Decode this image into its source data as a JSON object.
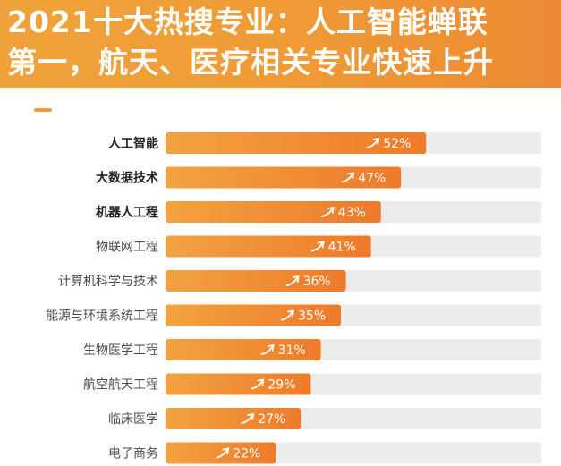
{
  "header": {
    "title_line1": "2021十大热搜专业：人工智能蝉联",
    "title_line2": "第一，航天、医疗相关专业快速上升",
    "bg_color": "#ef9a36"
  },
  "chart_data": {
    "type": "bar",
    "orientation": "horizontal",
    "categories": [
      "人工智能",
      "大数据技术",
      "机器人工程",
      "物联网工程",
      "计算机科学与技术",
      "能源与环境系统工程",
      "生物医学工程",
      "航空航天工程",
      "临床医学",
      "电子商务"
    ],
    "values": [
      52,
      47,
      43,
      41,
      36,
      35,
      31,
      29,
      27,
      22
    ],
    "value_labels": [
      "52%",
      "47%",
      "43%",
      "41%",
      "36%",
      "35%",
      "31%",
      "29%",
      "27%",
      "22%"
    ],
    "bold_categories": [
      0,
      1,
      2
    ],
    "xlim": [
      0,
      75
    ],
    "unit": "%",
    "icon": "trend-up-arrow-icon",
    "colors": {
      "bar_start": "#f2a341",
      "bar_end": "#ee7a2a",
      "track": "#ececec"
    },
    "grid": false,
    "legend": "none"
  }
}
